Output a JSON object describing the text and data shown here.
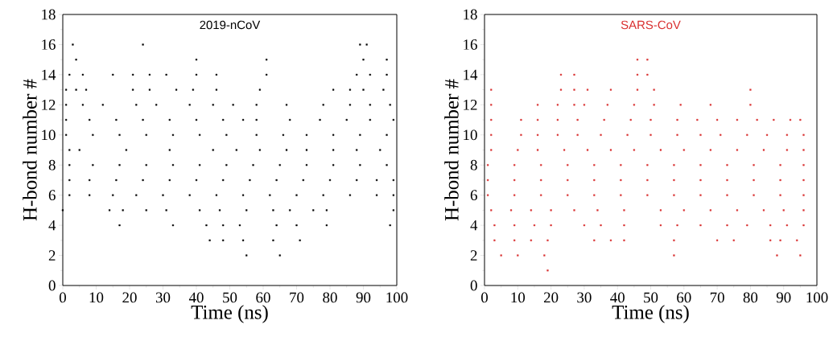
{
  "chart_data": [
    {
      "type": "scatter",
      "title": "2019-nCoV",
      "xlabel": "Time (ns)",
      "ylabel": "H-bond number #",
      "xlim": [
        0,
        100
      ],
      "xticks": [
        0,
        10,
        20,
        30,
        40,
        50,
        60,
        70,
        80,
        90,
        100
      ],
      "ylim": [
        0,
        18
      ],
      "yticks": [
        0,
        2,
        4,
        6,
        8,
        10,
        12,
        14,
        16,
        18
      ],
      "marker": "square",
      "series": [
        {
          "color": "#000000",
          "x": [
            3,
            24,
            89,
            91,
            4,
            40,
            61,
            90,
            97,
            2,
            6,
            15,
            21,
            26,
            31,
            40,
            46,
            61,
            88,
            92,
            97,
            1,
            4,
            7,
            21,
            26,
            34,
            39,
            46,
            59,
            81,
            86,
            90,
            96,
            1,
            6,
            12,
            22,
            28,
            38,
            45,
            51,
            58,
            67,
            78,
            86,
            92,
            98,
            1,
            8,
            16,
            24,
            32,
            40,
            48,
            54,
            58,
            68,
            77,
            85,
            92,
            99,
            1,
            9,
            17,
            25,
            33,
            41,
            49,
            58,
            66,
            73,
            81,
            89,
            97,
            2,
            5,
            19,
            32,
            45,
            52,
            59,
            67,
            73,
            81,
            88,
            95,
            2,
            9,
            17,
            25,
            33,
            41,
            49,
            57,
            65,
            73,
            81,
            89,
            97,
            2,
            8,
            16,
            24,
            32,
            40,
            48,
            56,
            64,
            72,
            80,
            88,
            94,
            99,
            2,
            8,
            15,
            22,
            30,
            38,
            46,
            54,
            62,
            70,
            78,
            86,
            94,
            99,
            0,
            14,
            18,
            25,
            31,
            41,
            47,
            55,
            63,
            68,
            75,
            79,
            99,
            17,
            33,
            43,
            48,
            53,
            64,
            70,
            79,
            98,
            44,
            48,
            54,
            63,
            71,
            55,
            65
          ],
          "values": [
            16,
            16,
            16,
            16,
            15,
            15,
            15,
            15,
            15,
            14,
            14,
            14,
            14,
            14,
            14,
            14,
            14,
            14,
            14,
            14,
            14,
            13,
            13,
            13,
            13,
            13,
            13,
            13,
            13,
            13,
            13,
            13,
            13,
            13,
            12,
            12,
            12,
            12,
            12,
            12,
            12,
            12,
            12,
            12,
            12,
            12,
            12,
            12,
            11,
            11,
            11,
            11,
            11,
            11,
            11,
            11,
            11,
            11,
            11,
            11,
            11,
            11,
            10,
            10,
            10,
            10,
            10,
            10,
            10,
            10,
            10,
            10,
            10,
            10,
            10,
            9,
            9,
            9,
            9,
            9,
            9,
            9,
            9,
            9,
            9,
            9,
            9,
            8,
            8,
            8,
            8,
            8,
            8,
            8,
            8,
            8,
            8,
            8,
            8,
            8,
            7,
            7,
            7,
            7,
            7,
            7,
            7,
            7,
            7,
            7,
            7,
            7,
            7,
            7,
            6,
            6,
            6,
            6,
            6,
            6,
            6,
            6,
            6,
            6,
            6,
            6,
            6,
            6,
            5,
            5,
            5,
            5,
            5,
            5,
            5,
            5,
            5,
            5,
            5,
            5,
            5,
            4,
            4,
            4,
            4,
            4,
            4,
            4,
            4,
            4,
            3,
            3,
            3,
            3,
            3,
            2,
            2
          ]
        }
      ]
    },
    {
      "type": "scatter",
      "title": "SARS-CoV",
      "xlabel": "Time (ns)",
      "ylabel": "H-bond number #",
      "xlim": [
        0,
        100
      ],
      "xticks": [
        0,
        10,
        20,
        30,
        40,
        50,
        60,
        70,
        80,
        90,
        100
      ],
      "ylim": [
        0,
        18
      ],
      "yticks": [
        0,
        2,
        4,
        6,
        8,
        10,
        12,
        14,
        16,
        18
      ],
      "marker": "square",
      "series": [
        {
          "color": "#d93030",
          "x": [
            46,
            49,
            23,
            27,
            46,
            49,
            2,
            23,
            27,
            31,
            38,
            46,
            51,
            80,
            2,
            16,
            22,
            27,
            30,
            37,
            45,
            51,
            59,
            68,
            80,
            2,
            11,
            16,
            22,
            28,
            36,
            44,
            50,
            58,
            64,
            70,
            76,
            82,
            87,
            92,
            95,
            2,
            11,
            16,
            22,
            28,
            35,
            43,
            50,
            58,
            65,
            71,
            79,
            85,
            91,
            96,
            2,
            10,
            16,
            24,
            31,
            38,
            45,
            53,
            60,
            68,
            76,
            84,
            91,
            96,
            1,
            9,
            17,
            25,
            33,
            41,
            49,
            57,
            65,
            73,
            81,
            89,
            96,
            1,
            9,
            17,
            25,
            33,
            41,
            49,
            57,
            65,
            73,
            81,
            89,
            96,
            1,
            9,
            17,
            25,
            33,
            41,
            49,
            57,
            65,
            73,
            81,
            89,
            96,
            2,
            8,
            14,
            20,
            27,
            34,
            42,
            53,
            60,
            68,
            76,
            84,
            90,
            96,
            3,
            9,
            15,
            20,
            30,
            35,
            42,
            53,
            58,
            65,
            73,
            79,
            86,
            91,
            96,
            3,
            9,
            14,
            19,
            33,
            38,
            42,
            57,
            70,
            75,
            86,
            89,
            94,
            5,
            10,
            18,
            57,
            88,
            95,
            19
          ],
          "values": [
            15,
            15,
            14,
            14,
            14,
            14,
            13,
            13,
            13,
            13,
            13,
            13,
            13,
            13,
            12,
            12,
            12,
            12,
            12,
            12,
            12,
            12,
            12,
            12,
            12,
            11,
            11,
            11,
            11,
            11,
            11,
            11,
            11,
            11,
            11,
            11,
            11,
            11,
            11,
            11,
            11,
            10,
            10,
            10,
            10,
            10,
            10,
            10,
            10,
            10,
            10,
            10,
            10,
            10,
            10,
            10,
            9,
            9,
            9,
            9,
            9,
            9,
            9,
            9,
            9,
            9,
            9,
            9,
            9,
            9,
            8,
            8,
            8,
            8,
            8,
            8,
            8,
            8,
            8,
            8,
            8,
            8,
            8,
            7,
            7,
            7,
            7,
            7,
            7,
            7,
            7,
            7,
            7,
            7,
            7,
            7,
            6,
            6,
            6,
            6,
            6,
            6,
            6,
            6,
            6,
            6,
            6,
            6,
            6,
            5,
            5,
            5,
            5,
            5,
            5,
            5,
            5,
            5,
            5,
            5,
            5,
            5,
            5,
            4,
            4,
            4,
            4,
            4,
            4,
            4,
            4,
            4,
            4,
            4,
            4,
            4,
            4,
            4,
            3,
            3,
            3,
            3,
            3,
            3,
            3,
            3,
            3,
            3,
            3,
            3,
            3,
            2,
            2,
            2,
            2,
            2,
            2,
            1
          ]
        }
      ]
    }
  ]
}
